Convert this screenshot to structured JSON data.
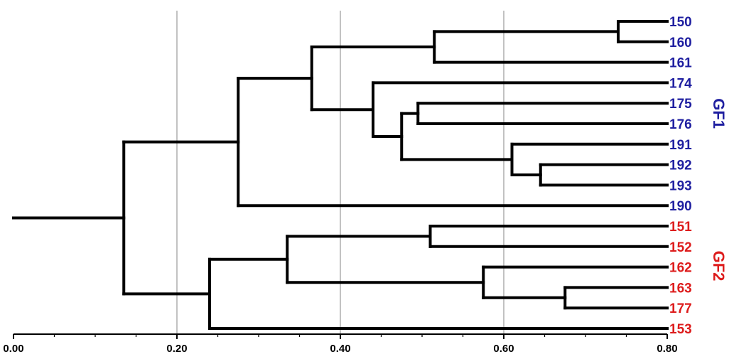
{
  "chart_data": {
    "type": "dendrogram",
    "orientation": "horizontal",
    "xlim": [
      0.0,
      0.8
    ],
    "x_ticks": [
      "0.00",
      "0.20",
      "0.40",
      "0.60",
      "0.80"
    ],
    "grid": {
      "vertical_at": [
        0.2,
        0.4,
        0.6
      ]
    },
    "leaves": [
      {
        "label": "150",
        "group": "GF1"
      },
      {
        "label": "160",
        "group": "GF1"
      },
      {
        "label": "161",
        "group": "GF1"
      },
      {
        "label": "174",
        "group": "GF1"
      },
      {
        "label": "175",
        "group": "GF1"
      },
      {
        "label": "176",
        "group": "GF1"
      },
      {
        "label": "191",
        "group": "GF1"
      },
      {
        "label": "192",
        "group": "GF1"
      },
      {
        "label": "193",
        "group": "GF1"
      },
      {
        "label": "190",
        "group": "GF1"
      },
      {
        "label": "151",
        "group": "GF2"
      },
      {
        "label": "152",
        "group": "GF2"
      },
      {
        "label": "162",
        "group": "GF2"
      },
      {
        "label": "163",
        "group": "GF2"
      },
      {
        "label": "177",
        "group": "GF2"
      },
      {
        "label": "153",
        "group": "GF2"
      }
    ],
    "tree": {
      "height": 0.135,
      "children": [
        {
          "height": 0.275,
          "children": [
            {
              "height": 0.365,
              "children": [
                {
                  "height": 0.515,
                  "children": [
                    {
                      "height": 0.74,
                      "children": [
                        {
                          "leaf": "150"
                        },
                        {
                          "leaf": "160"
                        }
                      ]
                    },
                    {
                      "leaf": "161"
                    }
                  ]
                },
                {
                  "height": 0.44,
                  "children": [
                    {
                      "leaf": "174"
                    },
                    {
                      "height": 0.475,
                      "children": [
                        {
                          "height": 0.495,
                          "children": [
                            {
                              "leaf": "175"
                            },
                            {
                              "leaf": "176"
                            }
                          ]
                        },
                        {
                          "height": 0.61,
                          "children": [
                            {
                              "leaf": "191"
                            },
                            {
                              "height": 0.645,
                              "children": [
                                {
                                  "leaf": "192"
                                },
                                {
                                  "leaf": "193"
                                }
                              ]
                            }
                          ]
                        }
                      ]
                    }
                  ]
                }
              ]
            },
            {
              "leaf": "190"
            }
          ]
        },
        {
          "height": 0.24,
          "children": [
            {
              "height": 0.335,
              "children": [
                {
                  "height": 0.51,
                  "children": [
                    {
                      "leaf": "151"
                    },
                    {
                      "leaf": "152"
                    }
                  ]
                },
                {
                  "height": 0.575,
                  "children": [
                    {
                      "leaf": "162"
                    },
                    {
                      "height": 0.675,
                      "children": [
                        {
                          "leaf": "163"
                        },
                        {
                          "leaf": "177"
                        }
                      ]
                    }
                  ]
                }
              ]
            },
            {
              "leaf": "153"
            }
          ]
        }
      ]
    },
    "root_extends_to": 0.0,
    "groups": [
      {
        "name": "GF1",
        "color": "#1f1fa0"
      },
      {
        "name": "GF2",
        "color": "#dd1c1c"
      }
    ],
    "colors": {
      "branch": "#000000",
      "grid": "#9a9a9a",
      "axis": "#000000"
    }
  }
}
